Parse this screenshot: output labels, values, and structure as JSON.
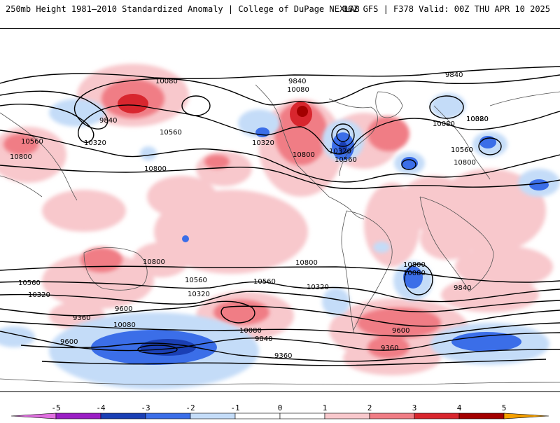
{
  "header": {
    "left_title": "250mb Height 1981–2010 Standardized Anomaly | College of DuPage NEXLAB",
    "right_title": "06Z GFS | F378 Valid: 00Z THU APR 10 2025"
  },
  "contour_labels": [
    "10080",
    "9840",
    "10560",
    "10800",
    "10320",
    "10800",
    "10560",
    "10320",
    "10800",
    "9840",
    "10080",
    "10320",
    "10560",
    "10080",
    "9840",
    "10080",
    "10320",
    "10560",
    "10800",
    "10800",
    "10800",
    "10560",
    "10320",
    "10320",
    "10560",
    "10560",
    "10320",
    "10800",
    "10080",
    "9840",
    "9360",
    "9600",
    "10080",
    "9600",
    "9360",
    "10080",
    "9840",
    "9600",
    "9360"
  ],
  "colorbar": {
    "ticks": [
      "-5",
      "-4",
      "-3",
      "-2",
      "-1",
      "0",
      "1",
      "2",
      "3",
      "4",
      "5"
    ],
    "colors": [
      "#e070e0",
      "#9a1ec4",
      "#1a3fb4",
      "#3b6ee8",
      "#c4dcf8",
      "#ffffff",
      "#f8c8cc",
      "#f07d85",
      "#d8262e",
      "#a30000",
      "#f5a000"
    ]
  }
}
